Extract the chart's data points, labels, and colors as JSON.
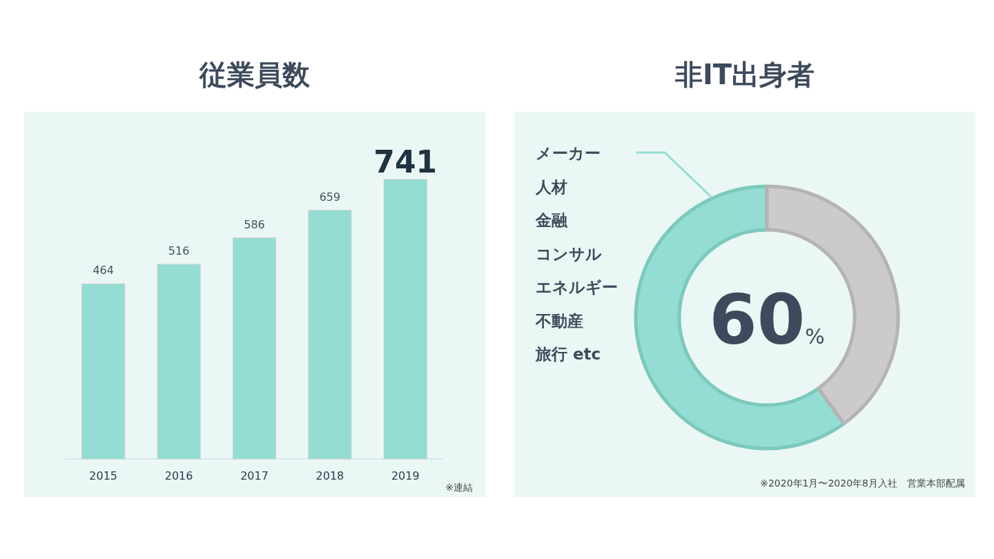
{
  "chart_data": [
    {
      "type": "bar",
      "title": "従業員数",
      "categories": [
        "2015",
        "2016",
        "2017",
        "2018",
        "2019"
      ],
      "values": [
        464,
        516,
        586,
        659,
        741
      ],
      "color": "#93ddd4",
      "relative": false,
      "data_labels": true,
      "annotations": [
        "※連結"
      ]
    },
    {
      "type": "donut",
      "title": "非IT出身者",
      "categories": [
        null,
        null
      ],
      "values": [
        60,
        40
      ],
      "colors": [
        "#93ddd4",
        "#cccaca"
      ],
      "value_labels": [
        "60%",
        null
      ],
      "annotations": [
        "メーカー",
        "人材",
        "金融",
        "コンサル",
        "エネルギー",
        "不動産",
        "旅行 etc",
        "※2020年1月〜2020年8月入社　営業本部配属"
      ]
    }
  ]
}
